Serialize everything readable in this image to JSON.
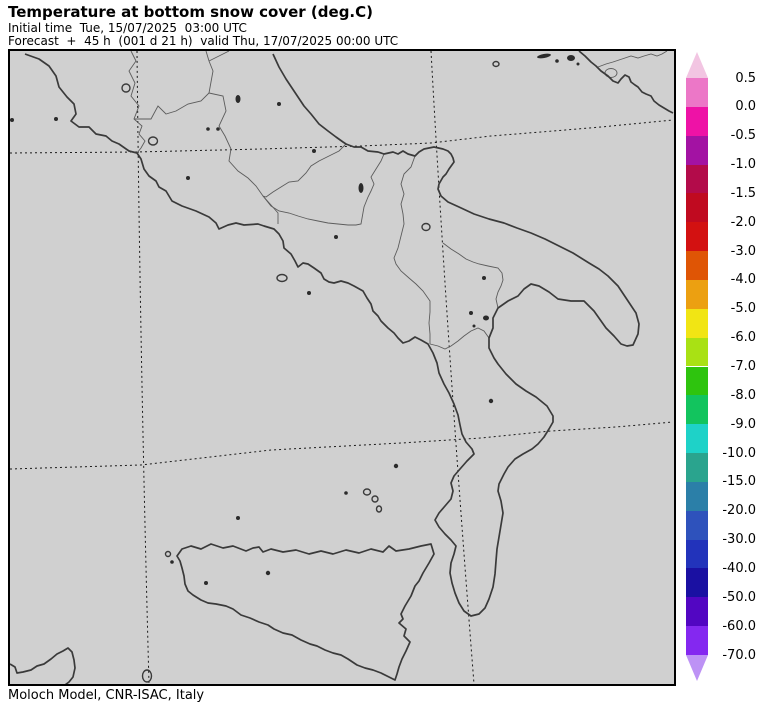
{
  "header": {
    "title": "Temperature at bottom snow cover (deg.C)",
    "initial_time_line": "Initial time  Tue, 15/07/2025  03:00 UTC",
    "forecast_line": "Forecast  +  45 h  (001 d 21 h)  valid Thu, 17/07/2025 00:00 UTC"
  },
  "footer": {
    "attribution": "Moloch Model, CNR-ISAC, Italy"
  },
  "legend": {
    "unit": "deg.C",
    "labels": [
      "0.5",
      "0.0",
      "-0.5",
      "-1.0",
      "-1.5",
      "-2.0",
      "-3.0",
      "-4.0",
      "-5.0",
      "-6.0",
      "-7.0",
      "-8.0",
      "-9.0",
      "-10.0",
      "-15.0",
      "-20.0",
      "-30.0",
      "-40.0",
      "-50.0",
      "-60.0",
      "-70.0"
    ],
    "band_colors": [
      "#ec77c7",
      "#ee12a6",
      "#a312a3",
      "#b30b4a",
      "#c00a20",
      "#d31111",
      "#df5505",
      "#eca011",
      "#f1e514",
      "#a9e114",
      "#2ec40e",
      "#12c45e",
      "#1ed2c8",
      "#2aa48e",
      "#2b7fa8",
      "#2e52bc",
      "#2233bb",
      "#1a10a2",
      "#5206c2",
      "#8428f0"
    ],
    "above_color": "#f2c5e2",
    "below_color": "#bd92f5"
  },
  "map": {
    "background": "#d0d0d0",
    "coast_color": "#3a3a3a",
    "region_border_color": "#5c5c5c",
    "graticule_color": "#1a1a1a",
    "ink": "#2b2b2b",
    "frame_color": "#000000"
  }
}
